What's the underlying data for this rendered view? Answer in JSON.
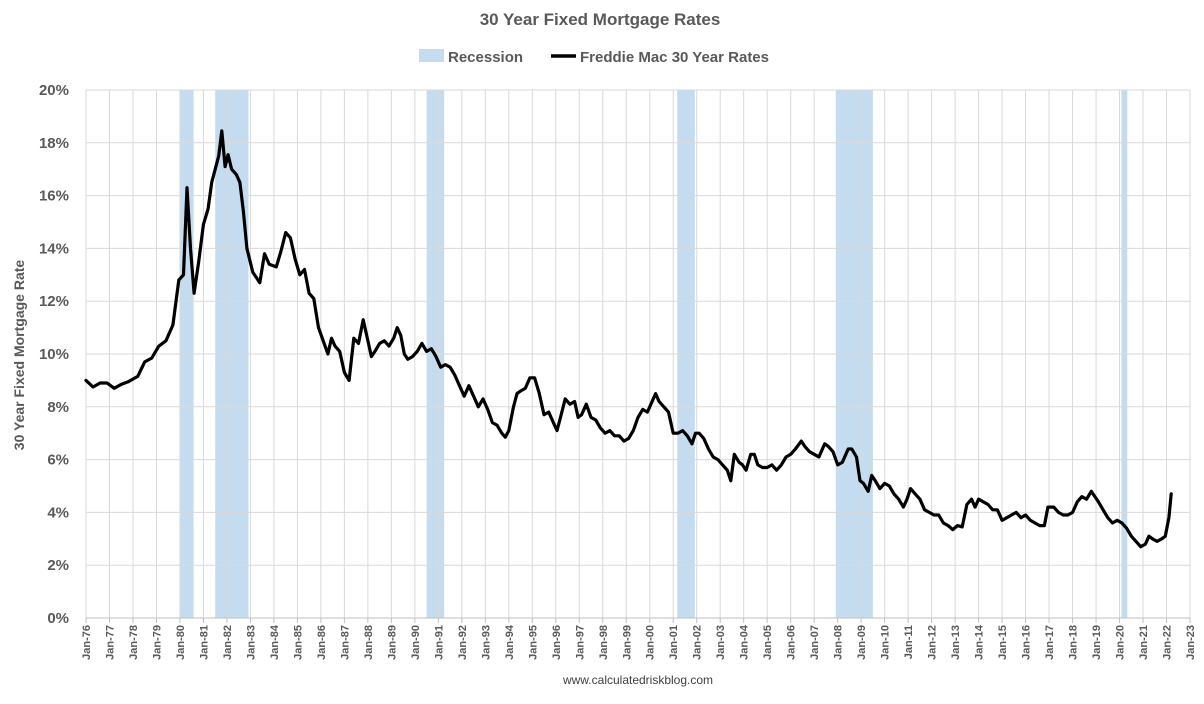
{
  "chart_data": {
    "type": "line",
    "title": "30 Year Fixed Mortgage Rates",
    "xlabel": "",
    "ylabel": "30 Year Fixed Mortgage Rate",
    "source": "www.calculatedriskblog.com",
    "xlim": [
      1976.0,
      2023.0
    ],
    "ylim": [
      0,
      20
    ],
    "ytick_values": [
      0,
      2,
      4,
      6,
      8,
      10,
      12,
      14,
      16,
      18,
      20
    ],
    "ytick_labels": [
      "0%",
      "2%",
      "4%",
      "6%",
      "8%",
      "10%",
      "12%",
      "14%",
      "16%",
      "18%",
      "20%"
    ],
    "xtick_labels": [
      "Jan-76",
      "Jan-77",
      "Jan-78",
      "Jan-79",
      "Jan-80",
      "Jan-81",
      "Jan-82",
      "Jan-83",
      "Jan-84",
      "Jan-85",
      "Jan-86",
      "Jan-87",
      "Jan-88",
      "Jan-89",
      "Jan-90",
      "Jan-91",
      "Jan-92",
      "Jan-93",
      "Jan-94",
      "Jan-95",
      "Jan-96",
      "Jan-97",
      "Jan-98",
      "Jan-99",
      "Jan-00",
      "Jan-01",
      "Jan-02",
      "Jan-03",
      "Jan-04",
      "Jan-05",
      "Jan-06",
      "Jan-07",
      "Jan-08",
      "Jan-09",
      "Jan-10",
      "Jan-11",
      "Jan-12",
      "Jan-13",
      "Jan-14",
      "Jan-15",
      "Jan-16",
      "Jan-17",
      "Jan-18",
      "Jan-19",
      "Jan-20",
      "Jan-21",
      "Jan-22",
      "Jan-23"
    ],
    "grid": true,
    "legend": {
      "position": "top-center",
      "entries": [
        {
          "name": "Recession",
          "type": "area",
          "color": "#c5dcf0"
        },
        {
          "name": "Freddie Mac 30 Year Rates",
          "type": "line",
          "color": "#000000"
        }
      ]
    },
    "recessions": [
      {
        "start": 1980.0,
        "end": 1980.58
      },
      {
        "start": 1981.5,
        "end": 1982.92
      },
      {
        "start": 1990.5,
        "end": 1991.25
      },
      {
        "start": 2001.17,
        "end": 2001.92
      },
      {
        "start": 2007.92,
        "end": 2009.5
      },
      {
        "start": 2020.08,
        "end": 2020.33
      }
    ],
    "series": [
      {
        "name": "Freddie Mac 30 Year Rates",
        "color": "#000000",
        "points": [
          [
            1976.0,
            9.0
          ],
          [
            1976.3,
            8.75
          ],
          [
            1976.6,
            8.9
          ],
          [
            1976.9,
            8.9
          ],
          [
            1977.2,
            8.7
          ],
          [
            1977.5,
            8.85
          ],
          [
            1977.8,
            8.95
          ],
          [
            1978.2,
            9.15
          ],
          [
            1978.5,
            9.7
          ],
          [
            1978.8,
            9.85
          ],
          [
            1979.1,
            10.3
          ],
          [
            1979.4,
            10.5
          ],
          [
            1979.7,
            11.1
          ],
          [
            1979.95,
            12.8
          ],
          [
            1980.15,
            13.0
          ],
          [
            1980.3,
            16.3
          ],
          [
            1980.45,
            14.0
          ],
          [
            1980.6,
            12.3
          ],
          [
            1980.8,
            13.5
          ],
          [
            1981.0,
            14.9
          ],
          [
            1981.2,
            15.5
          ],
          [
            1981.35,
            16.5
          ],
          [
            1981.5,
            17.0
          ],
          [
            1981.65,
            17.5
          ],
          [
            1981.78,
            18.45
          ],
          [
            1981.92,
            17.1
          ],
          [
            1982.05,
            17.55
          ],
          [
            1982.2,
            17.0
          ],
          [
            1982.4,
            16.8
          ],
          [
            1982.55,
            16.5
          ],
          [
            1982.7,
            15.4
          ],
          [
            1982.85,
            14.0
          ],
          [
            1983.1,
            13.1
          ],
          [
            1983.4,
            12.7
          ],
          [
            1983.6,
            13.8
          ],
          [
            1983.8,
            13.4
          ],
          [
            1984.1,
            13.3
          ],
          [
            1984.3,
            13.9
          ],
          [
            1984.5,
            14.6
          ],
          [
            1984.7,
            14.4
          ],
          [
            1984.9,
            13.6
          ],
          [
            1985.1,
            13.0
          ],
          [
            1985.3,
            13.2
          ],
          [
            1985.5,
            12.3
          ],
          [
            1985.7,
            12.1
          ],
          [
            1985.9,
            11.0
          ],
          [
            1986.1,
            10.5
          ],
          [
            1986.3,
            10.0
          ],
          [
            1986.45,
            10.6
          ],
          [
            1986.6,
            10.3
          ],
          [
            1986.8,
            10.1
          ],
          [
            1987.0,
            9.3
          ],
          [
            1987.2,
            9.0
          ],
          [
            1987.4,
            10.6
          ],
          [
            1987.6,
            10.4
          ],
          [
            1987.8,
            11.3
          ],
          [
            1988.0,
            10.5
          ],
          [
            1988.15,
            9.9
          ],
          [
            1988.3,
            10.1
          ],
          [
            1988.5,
            10.4
          ],
          [
            1988.7,
            10.5
          ],
          [
            1988.9,
            10.3
          ],
          [
            1989.1,
            10.6
          ],
          [
            1989.25,
            11.0
          ],
          [
            1989.4,
            10.7
          ],
          [
            1989.55,
            10.0
          ],
          [
            1989.7,
            9.8
          ],
          [
            1989.9,
            9.9
          ],
          [
            1990.1,
            10.1
          ],
          [
            1990.3,
            10.4
          ],
          [
            1990.5,
            10.1
          ],
          [
            1990.7,
            10.2
          ],
          [
            1990.9,
            9.9
          ],
          [
            1991.1,
            9.5
          ],
          [
            1991.3,
            9.6
          ],
          [
            1991.5,
            9.5
          ],
          [
            1991.7,
            9.2
          ],
          [
            1991.9,
            8.8
          ],
          [
            1992.1,
            8.4
          ],
          [
            1992.3,
            8.8
          ],
          [
            1992.5,
            8.4
          ],
          [
            1992.7,
            8.0
          ],
          [
            1992.9,
            8.3
          ],
          [
            1993.1,
            7.9
          ],
          [
            1993.3,
            7.4
          ],
          [
            1993.5,
            7.3
          ],
          [
            1993.7,
            7.0
          ],
          [
            1993.85,
            6.85
          ],
          [
            1994.0,
            7.1
          ],
          [
            1994.2,
            8.0
          ],
          [
            1994.35,
            8.5
          ],
          [
            1994.5,
            8.6
          ],
          [
            1994.7,
            8.7
          ],
          [
            1994.9,
            9.1
          ],
          [
            1995.1,
            9.1
          ],
          [
            1995.3,
            8.5
          ],
          [
            1995.5,
            7.7
          ],
          [
            1995.7,
            7.8
          ],
          [
            1995.9,
            7.4
          ],
          [
            1996.05,
            7.1
          ],
          [
            1996.2,
            7.6
          ],
          [
            1996.4,
            8.3
          ],
          [
            1996.6,
            8.1
          ],
          [
            1996.8,
            8.2
          ],
          [
            1996.95,
            7.6
          ],
          [
            1997.1,
            7.7
          ],
          [
            1997.3,
            8.1
          ],
          [
            1997.5,
            7.6
          ],
          [
            1997.7,
            7.5
          ],
          [
            1997.9,
            7.2
          ],
          [
            1998.1,
            7.0
          ],
          [
            1998.3,
            7.1
          ],
          [
            1998.5,
            6.9
          ],
          [
            1998.7,
            6.9
          ],
          [
            1998.9,
            6.7
          ],
          [
            1999.1,
            6.8
          ],
          [
            1999.3,
            7.1
          ],
          [
            1999.5,
            7.6
          ],
          [
            1999.7,
            7.9
          ],
          [
            1999.9,
            7.8
          ],
          [
            2000.1,
            8.2
          ],
          [
            2000.25,
            8.5
          ],
          [
            2000.4,
            8.2
          ],
          [
            2000.6,
            8.0
          ],
          [
            2000.8,
            7.8
          ],
          [
            2001.0,
            7.0
          ],
          [
            2001.2,
            7.0
          ],
          [
            2001.4,
            7.1
          ],
          [
            2001.6,
            6.9
          ],
          [
            2001.8,
            6.6
          ],
          [
            2001.95,
            7.0
          ],
          [
            2002.1,
            7.0
          ],
          [
            2002.3,
            6.8
          ],
          [
            2002.5,
            6.4
          ],
          [
            2002.7,
            6.1
          ],
          [
            2002.9,
            6.0
          ],
          [
            2003.1,
            5.8
          ],
          [
            2003.3,
            5.6
          ],
          [
            2003.45,
            5.2
          ],
          [
            2003.6,
            6.2
          ],
          [
            2003.8,
            5.9
          ],
          [
            2003.95,
            5.8
          ],
          [
            2004.1,
            5.6
          ],
          [
            2004.3,
            6.2
          ],
          [
            2004.45,
            6.2
          ],
          [
            2004.6,
            5.8
          ],
          [
            2004.8,
            5.7
          ],
          [
            2005.0,
            5.7
          ],
          [
            2005.2,
            5.8
          ],
          [
            2005.4,
            5.6
          ],
          [
            2005.6,
            5.8
          ],
          [
            2005.8,
            6.1
          ],
          [
            2006.0,
            6.2
          ],
          [
            2006.2,
            6.4
          ],
          [
            2006.45,
            6.7
          ],
          [
            2006.6,
            6.5
          ],
          [
            2006.8,
            6.3
          ],
          [
            2007.0,
            6.2
          ],
          [
            2007.2,
            6.1
          ],
          [
            2007.45,
            6.6
          ],
          [
            2007.6,
            6.5
          ],
          [
            2007.8,
            6.3
          ],
          [
            2008.0,
            5.8
          ],
          [
            2008.2,
            5.9
          ],
          [
            2008.45,
            6.4
          ],
          [
            2008.6,
            6.4
          ],
          [
            2008.8,
            6.1
          ],
          [
            2008.95,
            5.2
          ],
          [
            2009.1,
            5.1
          ],
          [
            2009.3,
            4.8
          ],
          [
            2009.45,
            5.4
          ],
          [
            2009.6,
            5.2
          ],
          [
            2009.8,
            4.9
          ],
          [
            2010.0,
            5.1
          ],
          [
            2010.2,
            5.0
          ],
          [
            2010.4,
            4.7
          ],
          [
            2010.6,
            4.5
          ],
          [
            2010.8,
            4.2
          ],
          [
            2010.95,
            4.5
          ],
          [
            2011.1,
            4.9
          ],
          [
            2011.3,
            4.7
          ],
          [
            2011.5,
            4.5
          ],
          [
            2011.7,
            4.1
          ],
          [
            2011.9,
            4.0
          ],
          [
            2012.1,
            3.9
          ],
          [
            2012.3,
            3.9
          ],
          [
            2012.5,
            3.6
          ],
          [
            2012.7,
            3.5
          ],
          [
            2012.9,
            3.35
          ],
          [
            2013.1,
            3.5
          ],
          [
            2013.3,
            3.45
          ],
          [
            2013.5,
            4.3
          ],
          [
            2013.7,
            4.5
          ],
          [
            2013.85,
            4.2
          ],
          [
            2014.0,
            4.5
          ],
          [
            2014.2,
            4.4
          ],
          [
            2014.4,
            4.3
          ],
          [
            2014.6,
            4.1
          ],
          [
            2014.8,
            4.1
          ],
          [
            2015.0,
            3.7
          ],
          [
            2015.2,
            3.8
          ],
          [
            2015.4,
            3.9
          ],
          [
            2015.6,
            4.0
          ],
          [
            2015.8,
            3.8
          ],
          [
            2016.0,
            3.9
          ],
          [
            2016.2,
            3.7
          ],
          [
            2016.4,
            3.6
          ],
          [
            2016.6,
            3.5
          ],
          [
            2016.8,
            3.5
          ],
          [
            2016.95,
            4.2
          ],
          [
            2017.2,
            4.2
          ],
          [
            2017.4,
            4.0
          ],
          [
            2017.6,
            3.9
          ],
          [
            2017.8,
            3.9
          ],
          [
            2018.0,
            4.0
          ],
          [
            2018.2,
            4.4
          ],
          [
            2018.4,
            4.6
          ],
          [
            2018.6,
            4.5
          ],
          [
            2018.8,
            4.8
          ],
          [
            2018.95,
            4.6
          ],
          [
            2019.1,
            4.4
          ],
          [
            2019.3,
            4.1
          ],
          [
            2019.5,
            3.8
          ],
          [
            2019.7,
            3.6
          ],
          [
            2019.9,
            3.7
          ],
          [
            2020.1,
            3.6
          ],
          [
            2020.3,
            3.4
          ],
          [
            2020.5,
            3.1
          ],
          [
            2020.7,
            2.9
          ],
          [
            2020.9,
            2.7
          ],
          [
            2021.1,
            2.8
          ],
          [
            2021.25,
            3.1
          ],
          [
            2021.4,
            3.0
          ],
          [
            2021.6,
            2.9
          ],
          [
            2021.8,
            3.0
          ],
          [
            2021.95,
            3.1
          ],
          [
            2022.1,
            3.8
          ],
          [
            2022.2,
            4.7
          ]
        ]
      }
    ]
  }
}
